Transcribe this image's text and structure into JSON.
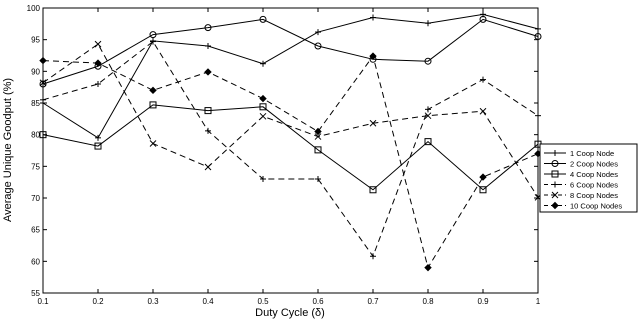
{
  "chart_data": {
    "type": "line",
    "title": "",
    "xlabel": "Duty Cycle (δ)",
    "ylabel": "Average Unique Goodput (%)",
    "xlim": [
      0.1,
      1
    ],
    "ylim": [
      55,
      100
    ],
    "xticks": [
      0.1,
      0.2,
      0.3,
      0.4,
      0.5,
      0.6,
      0.7,
      0.8,
      0.9,
      1
    ],
    "xtick_labels": [
      "0.1",
      "0.2",
      "0.3",
      "0.4",
      "0.5",
      "0.6",
      "0.7",
      "0.8",
      "0.9",
      "1"
    ],
    "yticks": [
      55,
      60,
      65,
      70,
      75,
      80,
      85,
      90,
      95,
      100
    ],
    "ytick_labels": [
      "55",
      "60",
      "65",
      "70",
      "75",
      "80",
      "85",
      "90",
      "95",
      "100"
    ],
    "grid": false,
    "legend_position": "right",
    "x": [
      0.1,
      0.2,
      0.3,
      0.4,
      0.5,
      0.6,
      0.7,
      0.8,
      0.9,
      1
    ],
    "series": [
      {
        "name": "1 Coop Node",
        "marker": "plus",
        "dash": "solid",
        "values": [
          85.0,
          79.5,
          94.8,
          94.0,
          91.2,
          96.2,
          98.5,
          97.6,
          99.0,
          96.7
        ]
      },
      {
        "name": "2 Coop Nodes",
        "marker": "circle",
        "dash": "solid",
        "values": [
          88.0,
          90.8,
          95.8,
          96.9,
          98.2,
          94.0,
          91.9,
          91.6,
          98.2,
          95.5
        ]
      },
      {
        "name": "4 Coop Nodes",
        "marker": "square",
        "dash": "solid",
        "values": [
          80.0,
          78.2,
          84.7,
          83.8,
          84.4,
          77.6,
          71.3,
          78.9,
          71.3,
          78.5
        ]
      },
      {
        "name": "6 Coop Nodes",
        "marker": "plus",
        "dash": "dashed",
        "values": [
          85.5,
          88.0,
          94.7,
          80.6,
          73.0,
          73.0,
          60.8,
          84.0,
          88.7,
          83.0
        ]
      },
      {
        "name": "8 Coop Nodes",
        "marker": "x",
        "dash": "dashed",
        "values": [
          88.2,
          94.3,
          78.6,
          74.9,
          82.9,
          79.7,
          81.8,
          83.0,
          83.7,
          70.1
        ]
      },
      {
        "name": "10 Coop Nodes",
        "marker": "diamond",
        "dash": "dashed",
        "values": [
          91.7,
          91.3,
          87.0,
          89.9,
          85.7,
          80.5,
          92.4,
          59.0,
          73.3,
          77.0
        ]
      }
    ]
  }
}
